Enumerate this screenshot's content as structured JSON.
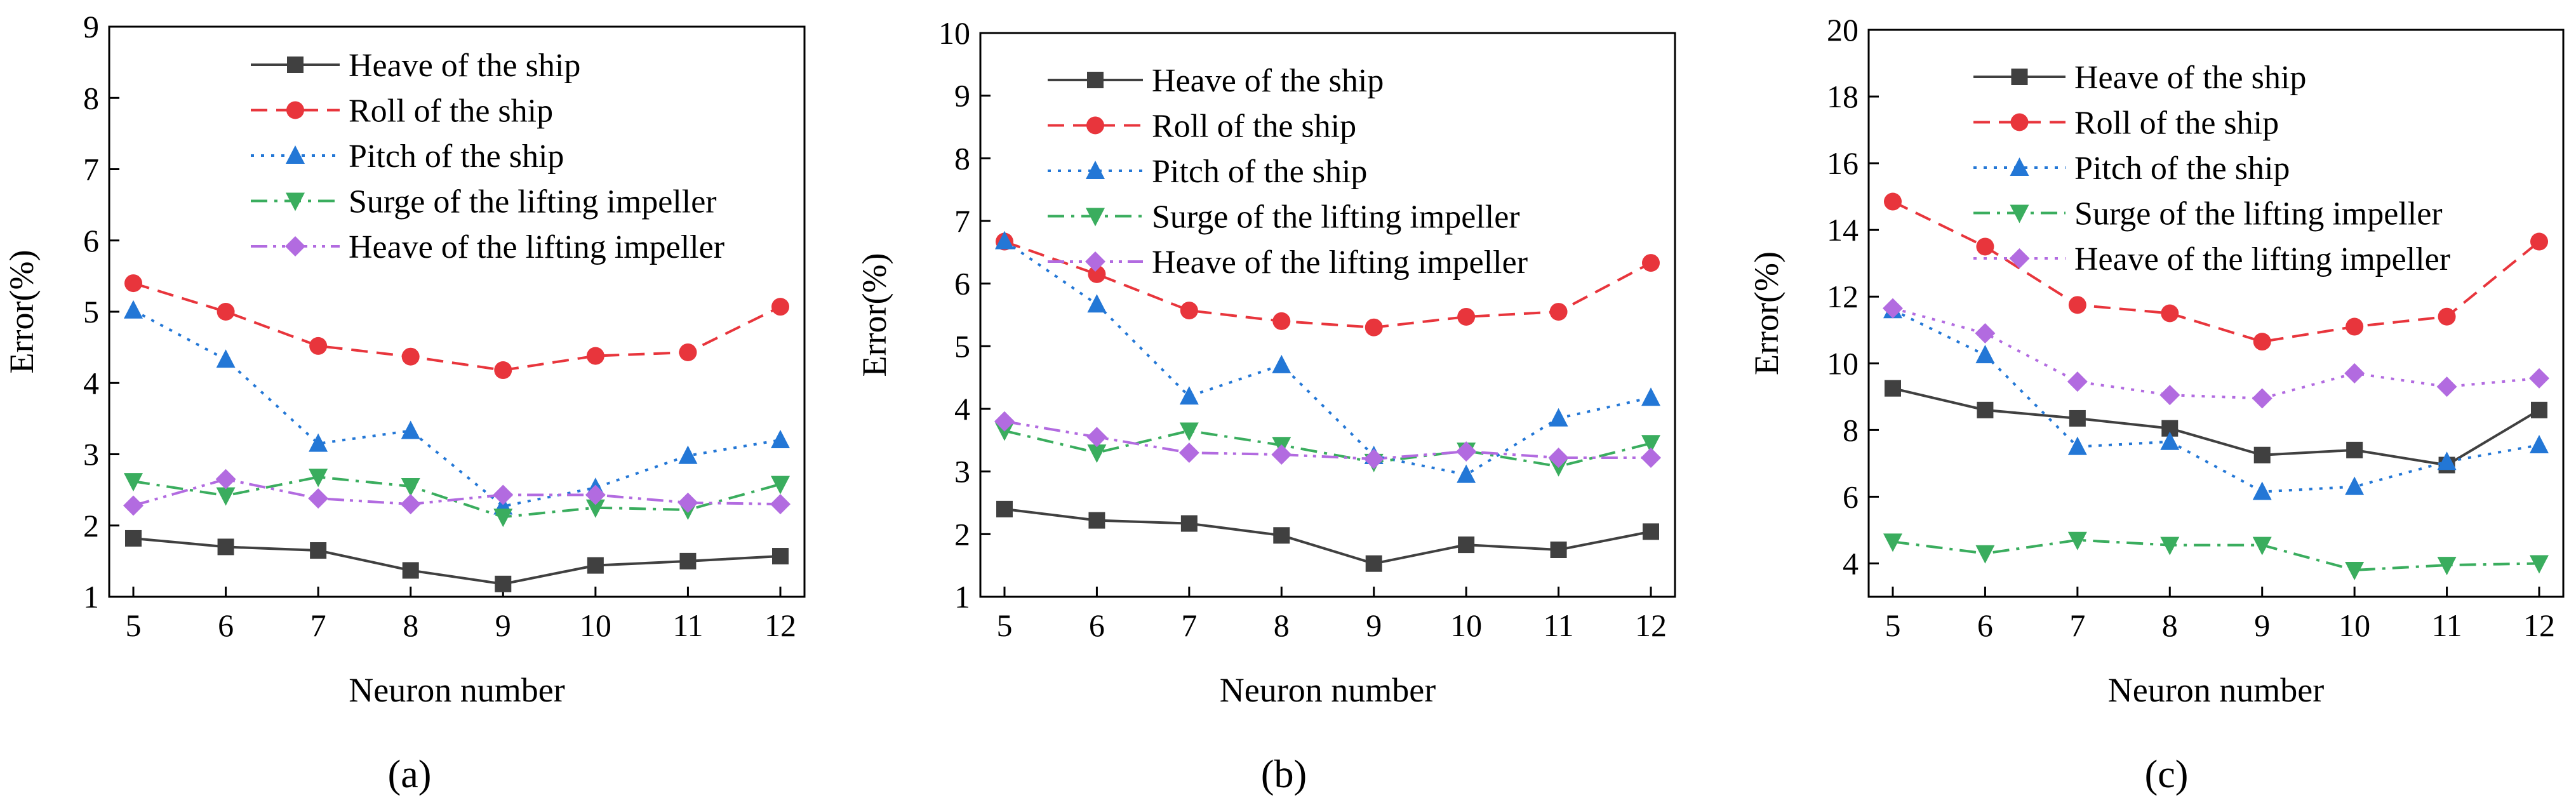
{
  "figure": {
    "panel_labels": [
      "(a)",
      "(b)",
      "(c)"
    ]
  },
  "chart_data": [
    {
      "type": "line",
      "panel": "(a)",
      "xlabel": "Neuron number",
      "ylabel": "Error(%)",
      "x": [
        5,
        6,
        7,
        8,
        9,
        10,
        11,
        12
      ],
      "xticks": [
        5,
        6,
        7,
        8,
        9,
        10,
        11,
        12
      ],
      "ylim": [
        1,
        9
      ],
      "yticks": [
        1,
        2,
        3,
        4,
        5,
        6,
        7,
        8,
        9
      ],
      "legend_position": "top-right",
      "series": [
        {
          "name": "Heave of the ship",
          "color": "#404040",
          "dash": "solid",
          "marker": "square",
          "values": [
            1.82,
            1.7,
            1.65,
            1.37,
            1.18,
            1.44,
            1.5,
            1.57
          ]
        },
        {
          "name": "Roll of the ship",
          "color": "#e8353c",
          "dash": "dash",
          "marker": "circle",
          "values": [
            5.4,
            5.0,
            4.52,
            4.37,
            4.18,
            4.38,
            4.43,
            5.07
          ]
        },
        {
          "name": "Pitch of the ship",
          "color": "#2377d6",
          "dash": "dot",
          "marker": "triangle-up",
          "values": [
            5.02,
            4.33,
            3.15,
            3.33,
            2.27,
            2.53,
            2.98,
            3.2
          ]
        },
        {
          "name": "Surge of the lifting impeller",
          "color": "#3aad5e",
          "dash": "dashdot",
          "marker": "triangle-down",
          "values": [
            2.62,
            2.42,
            2.68,
            2.55,
            2.12,
            2.25,
            2.22,
            2.58
          ]
        },
        {
          "name": "Heave of the lifting impeller",
          "color": "#b26be0",
          "dash": "dashdotdot",
          "marker": "diamond",
          "values": [
            2.28,
            2.65,
            2.38,
            2.3,
            2.43,
            2.43,
            2.32,
            2.3
          ]
        }
      ]
    },
    {
      "type": "line",
      "panel": "(b)",
      "xlabel": "Neuron number",
      "ylabel": "Error(%)",
      "x": [
        5,
        6,
        7,
        8,
        9,
        10,
        11,
        12
      ],
      "xticks": [
        5,
        6,
        7,
        8,
        9,
        10,
        11,
        12
      ],
      "ylim": [
        1,
        10
      ],
      "yticks": [
        1,
        2,
        3,
        4,
        5,
        6,
        7,
        8,
        9,
        10
      ],
      "legend_position": "top-right",
      "series": [
        {
          "name": "Heave of the ship",
          "color": "#404040",
          "dash": "solid",
          "marker": "square",
          "values": [
            2.4,
            2.22,
            2.17,
            1.98,
            1.53,
            1.83,
            1.75,
            2.04
          ]
        },
        {
          "name": "Roll of the ship",
          "color": "#e8353c",
          "dash": "dash",
          "marker": "circle",
          "values": [
            6.67,
            6.15,
            5.57,
            5.4,
            5.3,
            5.47,
            5.55,
            6.33
          ]
        },
        {
          "name": "Pitch of the ship",
          "color": "#2377d6",
          "dash": "dot",
          "marker": "triangle-up",
          "values": [
            6.68,
            5.67,
            4.2,
            4.7,
            3.25,
            2.95,
            3.85,
            4.18
          ]
        },
        {
          "name": "Surge of the lifting impeller",
          "color": "#3aad5e",
          "dash": "dashdot",
          "marker": "triangle-down",
          "values": [
            3.65,
            3.3,
            3.65,
            3.42,
            3.15,
            3.33,
            3.08,
            3.45
          ]
        },
        {
          "name": "Heave of the lifting impeller",
          "color": "#b26be0",
          "dash": "dashdotdot",
          "marker": "diamond",
          "values": [
            3.8,
            3.55,
            3.3,
            3.27,
            3.2,
            3.32,
            3.22,
            3.22
          ]
        }
      ]
    },
    {
      "type": "line",
      "panel": "(c)",
      "xlabel": "Neuron number",
      "ylabel": "Error(%)",
      "x": [
        5,
        6,
        7,
        8,
        9,
        10,
        11,
        12
      ],
      "xticks": [
        5,
        6,
        7,
        8,
        9,
        10,
        11,
        12
      ],
      "ylim": [
        3,
        20
      ],
      "yticks": [
        4,
        6,
        8,
        10,
        12,
        14,
        16,
        18,
        20
      ],
      "legend_position": "top-right",
      "series": [
        {
          "name": "Heave of the ship",
          "color": "#404040",
          "dash": "solid",
          "marker": "square",
          "values": [
            9.25,
            8.6,
            8.35,
            8.05,
            7.25,
            7.4,
            6.95,
            8.6
          ]
        },
        {
          "name": "Roll of the ship",
          "color": "#e8353c",
          "dash": "dash",
          "marker": "circle",
          "values": [
            14.85,
            13.5,
            11.75,
            11.5,
            10.65,
            11.1,
            11.4,
            13.65
          ]
        },
        {
          "name": "Pitch of the ship",
          "color": "#2377d6",
          "dash": "dot",
          "marker": "triangle-up",
          "values": [
            11.6,
            10.25,
            7.5,
            7.65,
            6.15,
            6.3,
            7.05,
            7.55
          ]
        },
        {
          "name": "Surge of the lifting impeller",
          "color": "#3aad5e",
          "dash": "dashdot",
          "marker": "triangle-down",
          "values": [
            4.65,
            4.3,
            4.7,
            4.55,
            4.55,
            3.8,
            3.95,
            4.0
          ]
        },
        {
          "name": "Heave of the lifting impeller",
          "color": "#b26be0",
          "dash": "dot",
          "marker": "diamond",
          "values": [
            11.65,
            10.9,
            9.45,
            9.05,
            8.95,
            9.7,
            9.3,
            9.55
          ]
        }
      ]
    }
  ]
}
